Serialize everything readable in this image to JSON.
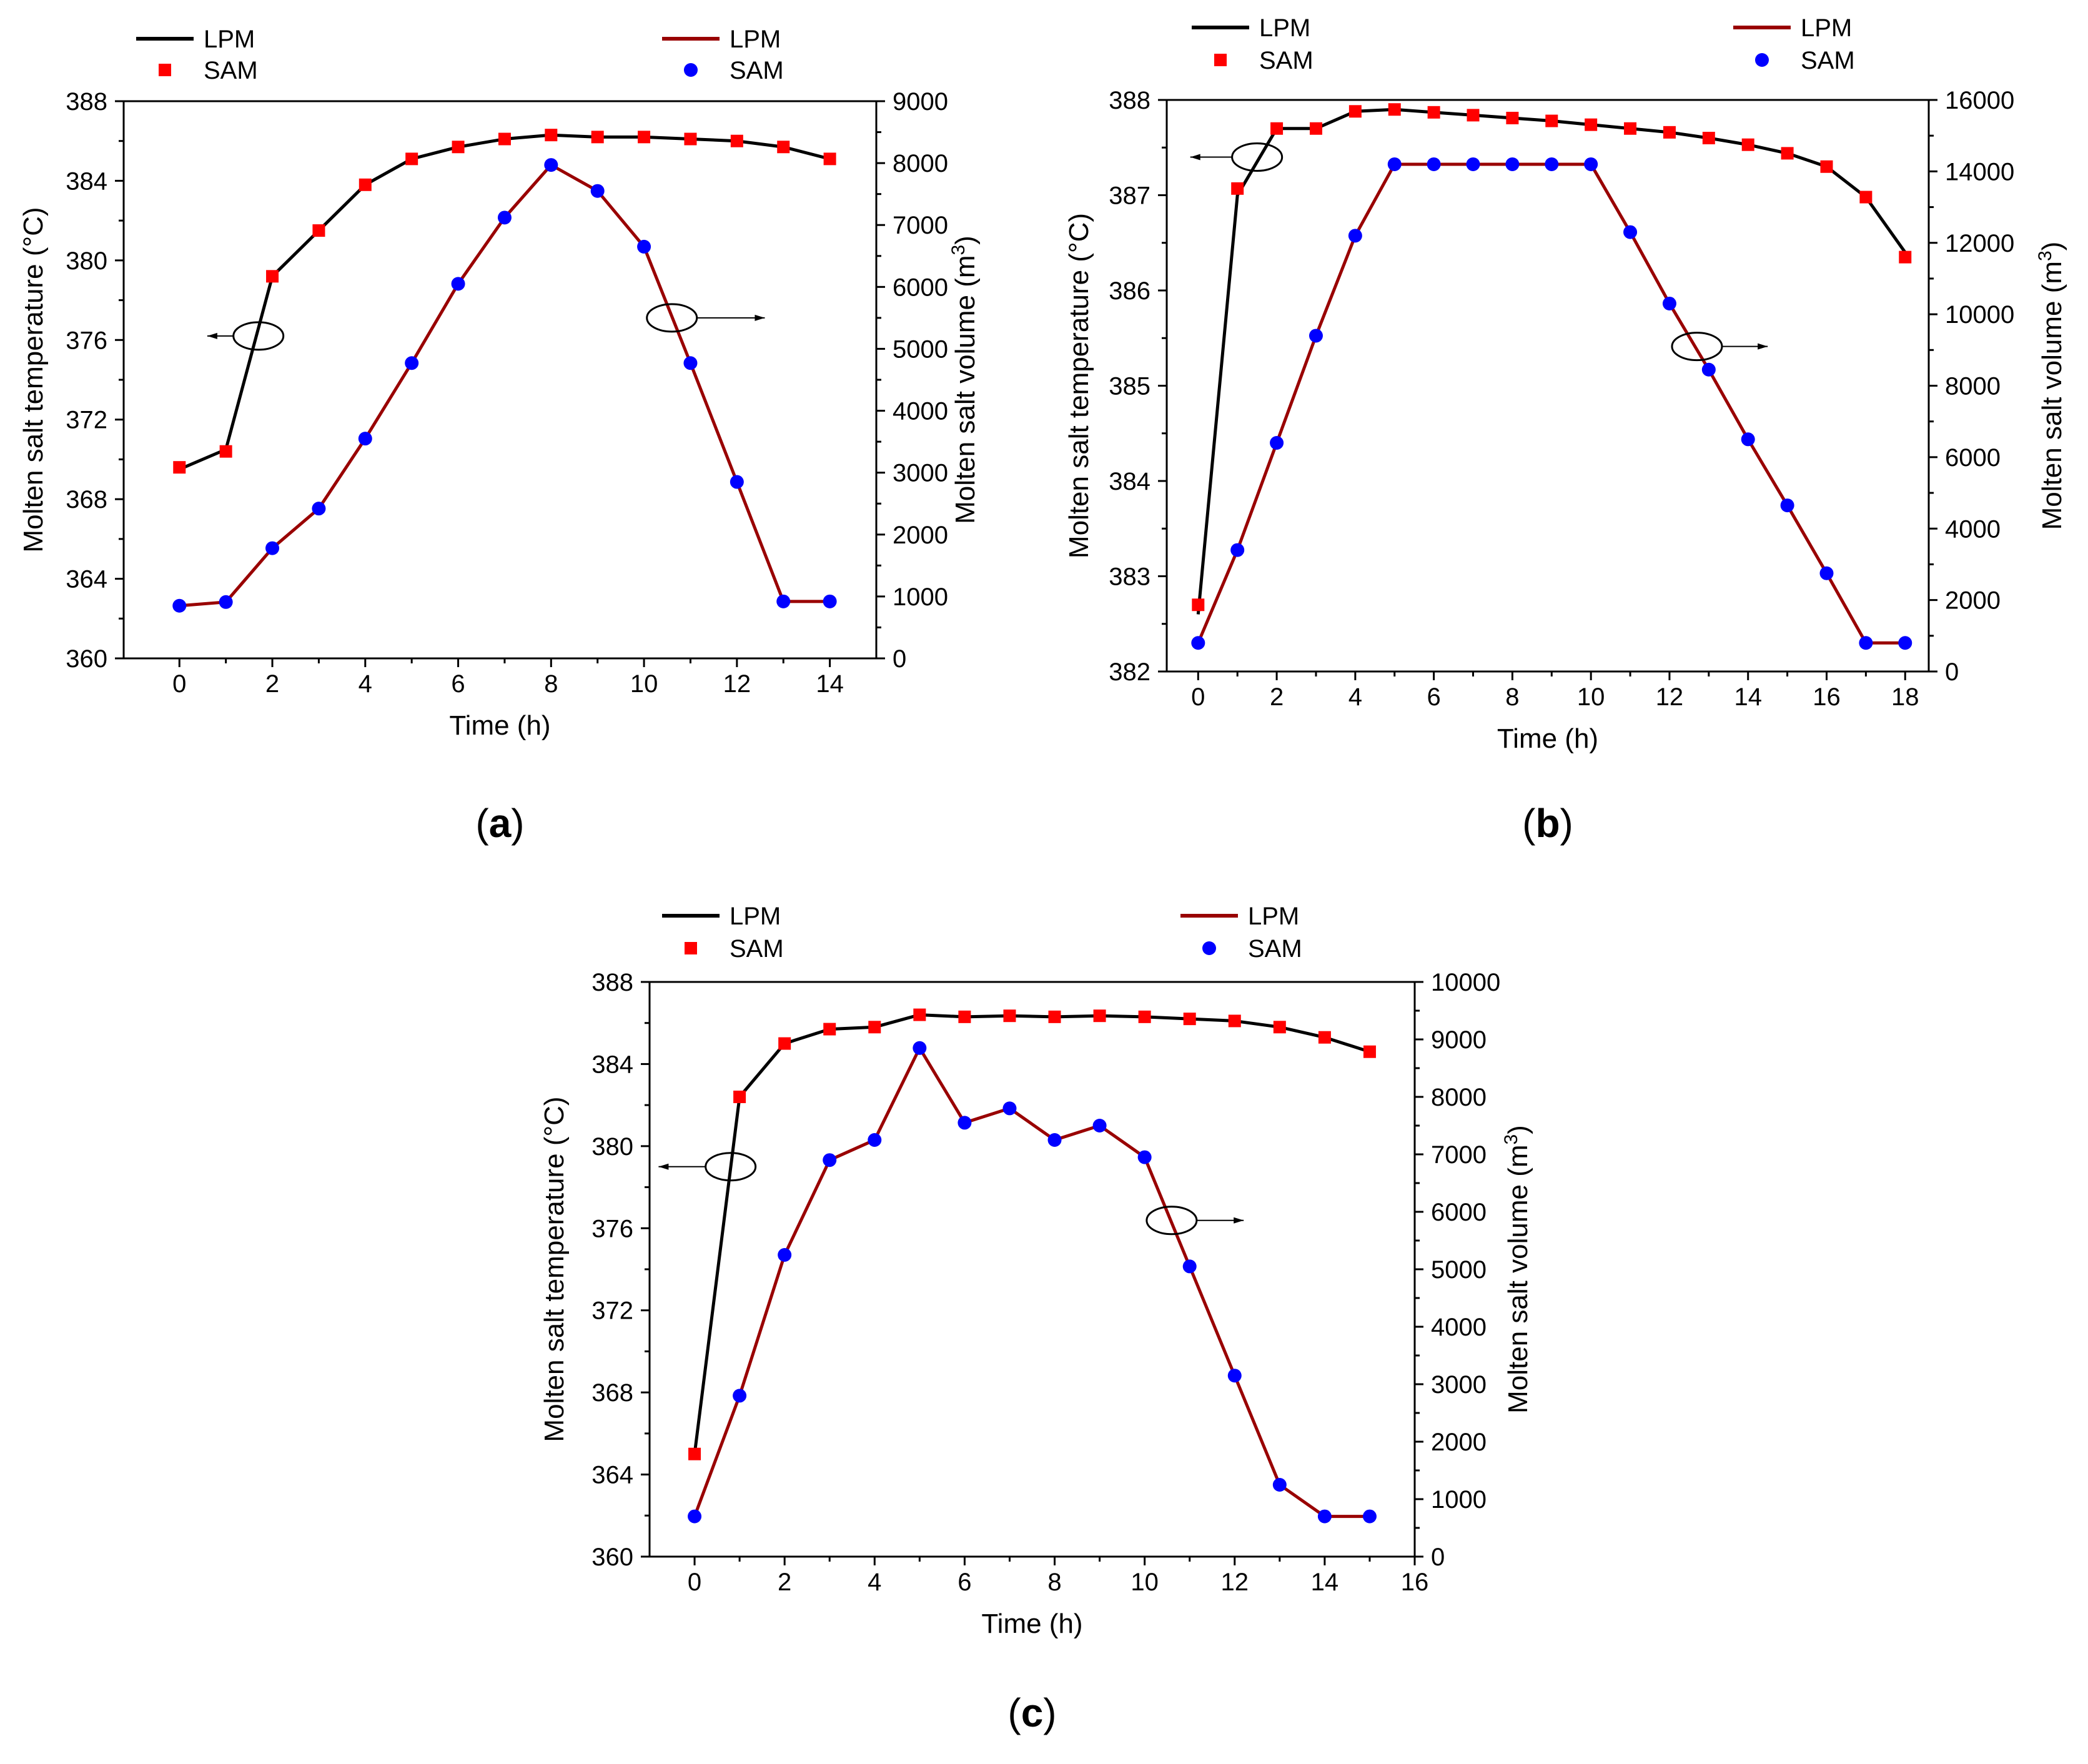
{
  "colors": {
    "temp_line": "#000000",
    "temp_marker": "#ff0000",
    "vol_line": "#990000",
    "vol_marker": "#0000ff",
    "axis": "#000000",
    "background": "#ffffff"
  },
  "chart_data": [
    {
      "type": "line",
      "panel_label": "(a)",
      "panel_letter": "a",
      "xlabel": "Time (h)",
      "ylabel_left": "Molten salt temperature (°C)",
      "ylabel_right_base": "Molten salt volume (m",
      "ylabel_right_sup": "3",
      "ylabel_right_close": ")",
      "xlim": [
        -1.2,
        15
      ],
      "xticks": [
        0,
        2,
        4,
        6,
        8,
        10,
        12,
        14
      ],
      "ylim_left": [
        360,
        388
      ],
      "yticks_left": [
        360,
        364,
        368,
        372,
        376,
        380,
        384,
        388
      ],
      "ylim_right": [
        0,
        9000
      ],
      "yticks_right": [
        0,
        1000,
        2000,
        3000,
        4000,
        5000,
        6000,
        7000,
        8000,
        9000
      ],
      "legend_left": {
        "line_label": "LPM",
        "marker_label": "SAM"
      },
      "legend_right": {
        "line_label": "LPM",
        "marker_label": "SAM"
      },
      "x": [
        0,
        1,
        2,
        3,
        4,
        5,
        6,
        7,
        8,
        9,
        10,
        11,
        12,
        13,
        14
      ],
      "series": [
        {
          "name": "Temperature LPM",
          "axis": "left",
          "kind": "line",
          "values": [
            369.5,
            370.5,
            379.2,
            381.5,
            383.8,
            385.1,
            385.7,
            386.1,
            386.3,
            386.2,
            386.2,
            386.1,
            386.0,
            385.7,
            385.1
          ]
        },
        {
          "name": "Temperature SAM",
          "axis": "left",
          "kind": "square",
          "values": [
            369.6,
            370.4,
            379.2,
            381.5,
            383.8,
            385.1,
            385.7,
            386.1,
            386.3,
            386.2,
            386.2,
            386.1,
            386.0,
            385.7,
            385.1
          ]
        },
        {
          "name": "Volume LPM",
          "axis": "right",
          "kind": "line",
          "values": [
            850,
            910,
            1780,
            2420,
            3550,
            4770,
            6050,
            7120,
            7970,
            7550,
            6650,
            4770,
            2850,
            920,
            920
          ]
        },
        {
          "name": "Volume SAM",
          "axis": "right",
          "kind": "circle",
          "values": [
            850,
            910,
            1780,
            2420,
            3550,
            4770,
            6050,
            7120,
            7970,
            7550,
            6650,
            4770,
            2850,
            920,
            920
          ]
        }
      ],
      "annotations": [
        {
          "ellipse_x": 1.7,
          "ellipse_y": 376.2,
          "axis": "left",
          "arrow": "left",
          "arrow_to_x": 0.6
        },
        {
          "ellipse_x": 10.6,
          "ellipse_y": 5500,
          "axis": "right",
          "arrow": "right",
          "arrow_to_x": 12.6
        }
      ]
    },
    {
      "type": "line",
      "panel_label": "(b)",
      "panel_letter": "b",
      "xlabel": "Time (h)",
      "ylabel_left": "Molten salt temperature (°C)",
      "ylabel_right_base": "Molten salt volume (m",
      "ylabel_right_sup": "3",
      "ylabel_right_close": ")",
      "xlim": [
        -0.8,
        18.6
      ],
      "xticks": [
        0,
        2,
        4,
        6,
        8,
        10,
        12,
        14,
        16,
        18
      ],
      "ylim_left": [
        382,
        388
      ],
      "yticks_left": [
        382,
        383,
        384,
        385,
        386,
        387,
        388
      ],
      "ylim_right": [
        0,
        16000
      ],
      "yticks_right": [
        0,
        2000,
        4000,
        6000,
        8000,
        10000,
        12000,
        14000,
        16000
      ],
      "legend_left": {
        "line_label": "LPM",
        "marker_label": "SAM"
      },
      "legend_right": {
        "line_label": "LPM",
        "marker_label": "SAM"
      },
      "x": [
        0,
        1,
        2,
        3,
        4,
        5,
        6,
        7,
        8,
        9,
        10,
        11,
        12,
        13,
        14,
        15,
        16,
        17,
        18
      ],
      "series": [
        {
          "name": "Temperature LPM",
          "axis": "left",
          "kind": "line",
          "values": [
            382.6,
            387.0,
            387.7,
            387.7,
            387.88,
            387.9,
            387.87,
            387.84,
            387.81,
            387.78,
            387.74,
            387.7,
            387.66,
            387.6,
            387.53,
            387.44,
            387.3,
            386.98,
            386.4
          ]
        },
        {
          "name": "Temperature SAM",
          "axis": "left",
          "kind": "square",
          "values": [
            382.7,
            387.07,
            387.7,
            387.7,
            387.88,
            387.9,
            387.87,
            387.84,
            387.81,
            387.78,
            387.74,
            387.7,
            387.66,
            387.6,
            387.53,
            387.44,
            387.3,
            386.98,
            386.35
          ]
        },
        {
          "name": "Volume LPM",
          "axis": "right",
          "kind": "line",
          "values": [
            800,
            3400,
            6400,
            9400,
            12200,
            14200,
            14200,
            14200,
            14200,
            14200,
            14200,
            12300,
            10300,
            8450,
            6500,
            4650,
            2750,
            800,
            800
          ]
        },
        {
          "name": "Volume SAM",
          "axis": "right",
          "kind": "circle",
          "values": [
            800,
            3400,
            6400,
            9400,
            12200,
            14200,
            14200,
            14200,
            14200,
            14200,
            14200,
            12300,
            10300,
            8450,
            6500,
            4650,
            2750,
            800,
            800
          ]
        }
      ],
      "annotations": [
        {
          "ellipse_x": 1.5,
          "ellipse_y": 387.4,
          "axis": "left",
          "arrow": "left",
          "arrow_to_x": -0.2
        },
        {
          "ellipse_x": 12.7,
          "ellipse_y": 9100,
          "axis": "right",
          "arrow": "right",
          "arrow_to_x": 14.5
        }
      ]
    },
    {
      "type": "line",
      "panel_label": "(c)",
      "panel_letter": "c",
      "xlabel": "Time (h)",
      "ylabel_left": "Molten salt temperature (°C)",
      "ylabel_right_base": "Molten salt volume (m",
      "ylabel_right_sup": "3",
      "ylabel_right_close": ")",
      "xlim": [
        -1,
        16
      ],
      "xticks": [
        0,
        2,
        4,
        6,
        8,
        10,
        12,
        14,
        16
      ],
      "ylim_left": [
        360,
        388
      ],
      "yticks_left": [
        360,
        364,
        368,
        372,
        376,
        380,
        384,
        388
      ],
      "ylim_right": [
        0,
        10000
      ],
      "yticks_right": [
        0,
        1000,
        2000,
        3000,
        4000,
        5000,
        6000,
        7000,
        8000,
        9000,
        10000
      ],
      "legend_left": {
        "line_label": "LPM",
        "marker_label": "SAM"
      },
      "legend_right": {
        "line_label": "LPM",
        "marker_label": "SAM"
      },
      "x": [
        0,
        1,
        2,
        3,
        4,
        5,
        6,
        7,
        8,
        9,
        10,
        11,
        12,
        13,
        14,
        15
      ],
      "series": [
        {
          "name": "Temperature LPM",
          "axis": "left",
          "kind": "line",
          "values": [
            365.0,
            382.4,
            385.0,
            385.7,
            385.8,
            386.4,
            386.3,
            386.35,
            386.3,
            386.35,
            386.3,
            386.2,
            386.1,
            385.8,
            385.3,
            384.6
          ]
        },
        {
          "name": "Temperature SAM",
          "axis": "left",
          "kind": "square",
          "values": [
            365.0,
            382.4,
            385.0,
            385.7,
            385.8,
            386.4,
            386.3,
            386.35,
            386.3,
            386.35,
            386.3,
            386.2,
            386.1,
            385.8,
            385.3,
            384.6
          ]
        },
        {
          "name": "Volume LPM",
          "axis": "right",
          "kind": "line",
          "values": [
            700,
            2800,
            5250,
            6900,
            7250,
            8850,
            7550,
            7800,
            7250,
            7500,
            6950,
            5050,
            3150,
            1250,
            700,
            700
          ]
        },
        {
          "name": "Volume SAM",
          "axis": "right",
          "kind": "circle",
          "values": [
            700,
            2800,
            5250,
            6900,
            7250,
            8850,
            7550,
            7800,
            7250,
            7500,
            6950,
            5050,
            3150,
            1250,
            700,
            700
          ]
        }
      ],
      "annotations": [
        {
          "ellipse_x": 0.8,
          "ellipse_y": 379.0,
          "axis": "left",
          "arrow": "left",
          "arrow_to_x": -0.8
        },
        {
          "ellipse_x": 10.6,
          "ellipse_y": 5850,
          "axis": "right",
          "arrow": "right",
          "arrow_to_x": 12.2
        }
      ]
    }
  ]
}
